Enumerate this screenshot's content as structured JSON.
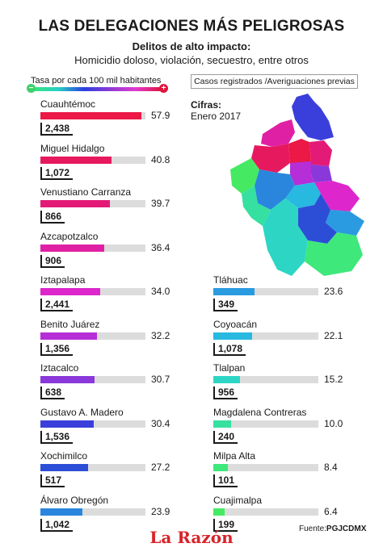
{
  "header": {
    "title": "LAS DELEGACIONES MÁS PELIGROSAS",
    "subtitle": "Delitos de alto impacto:",
    "subtitle_detail": "Homicidio doloso, violación, secuestro, entre otros"
  },
  "legend": {
    "rate_label": "Tasa por cada 100 mil habitantes",
    "min_symbol": "−",
    "max_symbol": "+",
    "cases_label": "Casos registrados /Averiguaciones previas"
  },
  "figures": {
    "label": "Cifras:",
    "date": "Enero 2017"
  },
  "chart_data": {
    "type": "bar",
    "rate_max": 60,
    "series_left": [
      {
        "name": "Cuauhtémoc",
        "rate": 57.9,
        "rate_label": "57.9",
        "cases": "2,438",
        "color": "#ec1846"
      },
      {
        "name": "Miguel Hidalgo",
        "rate": 40.8,
        "rate_label": "40.8",
        "cases": "1,072",
        "color": "#e6195f"
      },
      {
        "name": "Venustiano Carranza",
        "rate": 39.7,
        "rate_label": "39.7",
        "cases": "866",
        "color": "#e31a76"
      },
      {
        "name": "Azcapotzalco",
        "rate": 36.4,
        "rate_label": "36.4",
        "cases": "906",
        "color": "#e020a4"
      },
      {
        "name": "Iztapalapa",
        "rate": 34.0,
        "rate_label": "34.0",
        "cases": "2,441",
        "color": "#dd26cc"
      },
      {
        "name": "Benito Juárez",
        "rate": 32.2,
        "rate_label": "32.2",
        "cases": "1,356",
        "color": "#b52ed8"
      },
      {
        "name": "Iztacalco",
        "rate": 30.7,
        "rate_label": "30.7",
        "cases": "638",
        "color": "#8a38d9"
      },
      {
        "name": "Gustavo A. Madero",
        "rate": 30.4,
        "rate_label": "30.4",
        "cases": "1,536",
        "color": "#3a3fdc"
      },
      {
        "name": "Xochimilco",
        "rate": 27.2,
        "rate_label": "27.2",
        "cases": "517",
        "color": "#2c4ed6"
      },
      {
        "name": "Álvaro Obregón",
        "rate": 23.9,
        "rate_label": "23.9",
        "cases": "1,042",
        "color": "#2a86dc"
      }
    ],
    "series_right": [
      {
        "name": "Tláhuac",
        "rate": 23.6,
        "rate_label": "23.6",
        "cases": "349",
        "color": "#2a9be0"
      },
      {
        "name": "Coyoacán",
        "rate": 22.1,
        "rate_label": "22.1",
        "cases": "1,078",
        "color": "#27b9e0"
      },
      {
        "name": "Tlalpan",
        "rate": 15.2,
        "rate_label": "15.2",
        "cases": "956",
        "color": "#2dd6c4"
      },
      {
        "name": "Magdalena Contreras",
        "rate": 10.0,
        "rate_label": "10.0",
        "cases": "240",
        "color": "#35e0a0"
      },
      {
        "name": "Milpa Alta",
        "rate": 8.4,
        "rate_label": "8.4",
        "cases": "101",
        "color": "#3ee87a"
      },
      {
        "name": "Cuajimalpa",
        "rate": 6.4,
        "rate_label": "6.4",
        "cases": "199",
        "color": "#46ea62"
      }
    ]
  },
  "footer": {
    "logo": "La Razón",
    "source_label": "Fuente:",
    "source_name": "PGJCDMX"
  }
}
